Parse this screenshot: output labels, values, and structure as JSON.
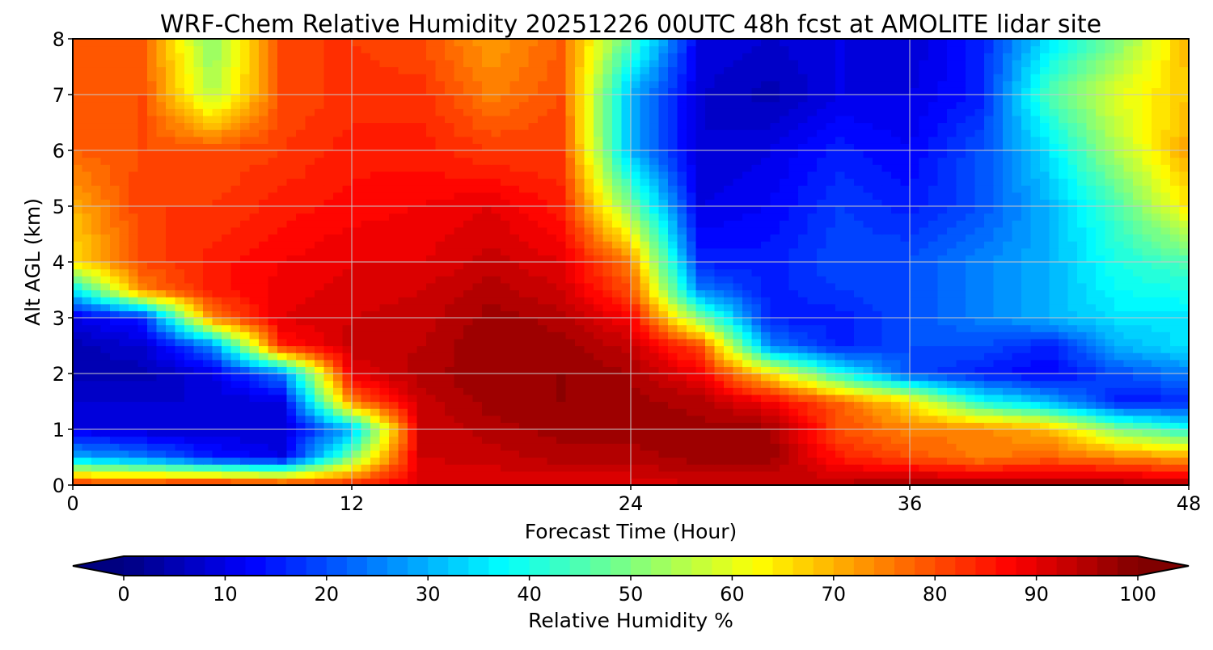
{
  "chart_data": {
    "type": "heatmap",
    "title": "WRF-Chem Relative Humidity 20251226 00UTC 48h fcst at AMOLITE lidar site",
    "xlabel": "Forecast Time (Hour)",
    "ylabel": "Alt AGL (km)",
    "xlim": [
      0,
      48
    ],
    "ylim": [
      0,
      8
    ],
    "xticks": [
      "0",
      "12",
      "24",
      "36",
      "48"
    ],
    "yticks": [
      "0",
      "1",
      "2",
      "3",
      "4",
      "5",
      "6",
      "7",
      "8"
    ],
    "grid": true,
    "colormap": "jet",
    "x": [
      0,
      3,
      6,
      9,
      12,
      15,
      18,
      21,
      24,
      27,
      30,
      33,
      36,
      39,
      42,
      45,
      48
    ],
    "y": [
      0,
      0.5,
      1,
      1.5,
      2,
      2.5,
      3,
      3.5,
      4,
      5,
      6,
      7,
      8
    ],
    "z": [
      [
        85,
        85,
        88,
        85,
        85,
        90,
        90,
        90,
        90,
        92,
        92,
        95,
        97,
        97,
        97,
        97,
        95
      ],
      [
        30,
        25,
        15,
        10,
        50,
        92,
        93,
        95,
        95,
        97,
        97,
        85,
        80,
        75,
        78,
        75,
        72
      ],
      [
        10,
        8,
        8,
        8,
        30,
        92,
        95,
        97,
        97,
        97,
        97,
        80,
        75,
        75,
        70,
        50,
        40
      ],
      [
        8,
        8,
        8,
        10,
        75,
        93,
        97,
        98,
        97,
        95,
        88,
        78,
        65,
        40,
        30,
        15,
        15
      ],
      [
        5,
        5,
        10,
        25,
        90,
        95,
        98,
        98,
        96,
        88,
        65,
        40,
        20,
        15,
        12,
        20,
        25
      ],
      [
        5,
        8,
        25,
        85,
        93,
        94,
        98,
        97,
        93,
        80,
        25,
        15,
        20,
        20,
        15,
        30,
        35
      ],
      [
        10,
        15,
        75,
        90,
        92,
        93,
        97,
        95,
        88,
        50,
        15,
        15,
        20,
        25,
        30,
        35,
        35
      ],
      [
        35,
        75,
        85,
        89,
        91,
        92,
        95,
        92,
        80,
        25,
        15,
        18,
        20,
        25,
        30,
        38,
        40
      ],
      [
        65,
        80,
        85,
        88,
        90,
        90,
        93,
        90,
        75,
        15,
        15,
        20,
        20,
        25,
        30,
        40,
        45
      ],
      [
        70,
        82,
        82,
        85,
        87,
        88,
        90,
        85,
        50,
        10,
        12,
        18,
        15,
        20,
        30,
        45,
        65
      ],
      [
        78,
        80,
        80,
        82,
        85,
        85,
        82,
        82,
        30,
        8,
        10,
        15,
        12,
        20,
        35,
        55,
        72
      ],
      [
        78,
        80,
        55,
        80,
        83,
        83,
        75,
        80,
        30,
        8,
        5,
        10,
        10,
        15,
        45,
        60,
        68
      ],
      [
        78,
        78,
        50,
        82,
        82,
        80,
        72,
        78,
        45,
        10,
        8,
        10,
        8,
        15,
        35,
        50,
        70
      ]
    ],
    "colorbar": {
      "label": "Relative Humidity %",
      "range": [
        0,
        100
      ],
      "ticks": [
        "0",
        "10",
        "20",
        "30",
        "40",
        "50",
        "60",
        "70",
        "80",
        "90",
        "100"
      ],
      "extend": "both"
    }
  }
}
